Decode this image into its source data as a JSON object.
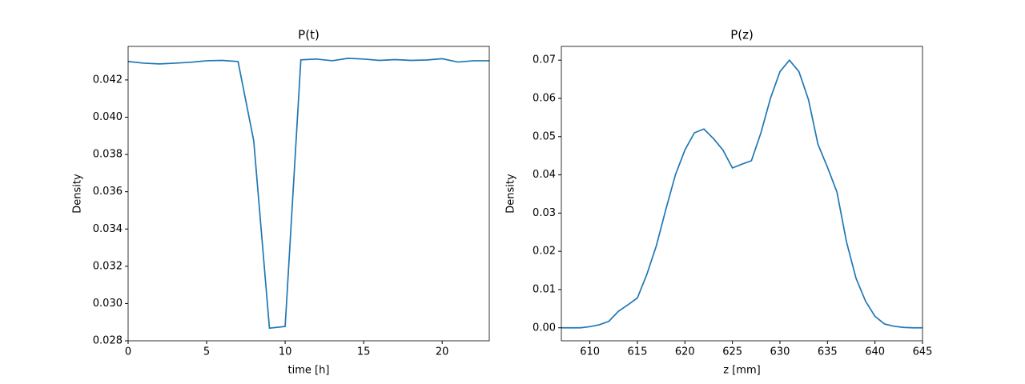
{
  "chart_data": [
    {
      "type": "line",
      "title": "P(t)",
      "x_label": "time [h]",
      "y_label": "Density",
      "x": [
        0,
        1,
        2,
        3,
        4,
        5,
        6,
        7,
        8,
        9,
        10,
        11,
        12,
        13,
        14,
        15,
        16,
        17,
        18,
        19,
        20,
        21,
        22,
        23
      ],
      "series": [
        {
          "color": "#1f77b4",
          "values": [
            0.04299,
            0.0429,
            0.04286,
            0.0429,
            0.04295,
            0.04303,
            0.04305,
            0.04299,
            0.03873,
            0.02868,
            0.02877,
            0.04308,
            0.04312,
            0.04303,
            0.04316,
            0.04312,
            0.04305,
            0.04309,
            0.04305,
            0.04307,
            0.04314,
            0.04296,
            0.04303,
            0.04303
          ]
        }
      ],
      "xlim": [
        0,
        23
      ],
      "xticks": [
        0,
        5,
        10,
        15,
        20
      ],
      "ylim": [
        0.028,
        0.0438
      ],
      "yticks": [
        0.028,
        {
          "value": 0.03,
          "label": "0.030"
        },
        0.032,
        0.034,
        0.036,
        0.038,
        {
          "value": 0.04,
          "label": "0.040"
        },
        0.042
      ]
    },
    {
      "type": "line",
      "title": "P(z)",
      "x_label": "z [mm]",
      "y_label": "Density",
      "x": [
        607,
        608,
        609,
        610,
        611,
        612,
        613,
        614,
        615,
        616,
        617,
        618,
        619,
        620,
        621,
        622,
        623,
        624,
        625,
        626,
        627,
        628,
        629,
        630,
        631,
        632,
        633,
        634,
        635,
        636,
        637,
        638,
        639,
        640,
        641,
        642,
        643,
        644,
        645
      ],
      "series": [
        {
          "color": "#1f77b4",
          "values": [
            0,
            0,
            0,
            0.0003,
            0.0008,
            0.0017,
            0.0043,
            0.006,
            0.0078,
            0.014,
            0.0215,
            0.031,
            0.04,
            0.0465,
            0.051,
            0.052,
            0.0495,
            0.0465,
            0.0418,
            0.0428,
            0.0437,
            0.051,
            0.06,
            0.067,
            0.07,
            0.067,
            0.0597,
            0.048,
            0.042,
            0.0355,
            0.0225,
            0.013,
            0.007,
            0.003,
            0.001,
            0.0004,
            0.0001,
            0,
            0
          ]
        }
      ],
      "xlim": [
        607,
        645
      ],
      "xticks": [
        610,
        615,
        620,
        625,
        630,
        635,
        640,
        645
      ],
      "ylim": [
        -0.0034,
        0.0736
      ],
      "yticks": [
        {
          "value": 0,
          "label": "0.00"
        },
        {
          "value": 0.01,
          "label": "0.01"
        },
        {
          "value": 0.02,
          "label": "0.02"
        },
        {
          "value": 0.03,
          "label": "0.03"
        },
        {
          "value": 0.04,
          "label": "0.04"
        },
        {
          "value": 0.05,
          "label": "0.05"
        },
        {
          "value": 0.06,
          "label": "0.06"
        },
        {
          "value": 0.07,
          "label": "0.07"
        }
      ]
    }
  ]
}
